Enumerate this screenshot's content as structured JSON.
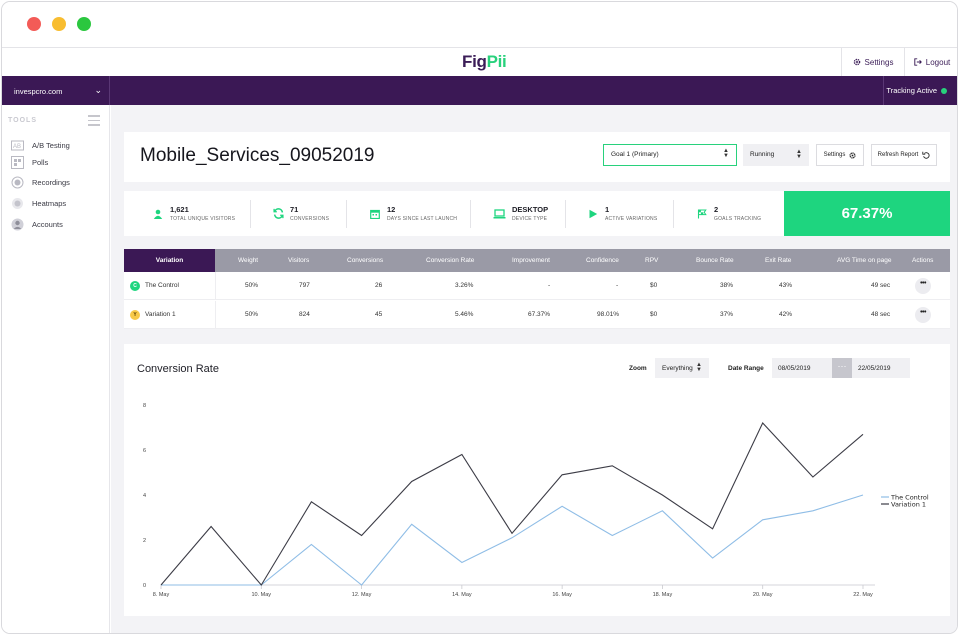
{
  "app": {
    "logo_a": "Fig",
    "logo_b": "Pii"
  },
  "topbar": {
    "settings_label": "Settings",
    "logout_label": "Logout"
  },
  "purplebar": {
    "site": "invespcro.com",
    "tracking_label": "Tracking Active"
  },
  "sidebar": {
    "section_label": "TOOLS",
    "items": [
      {
        "label": "A/B Testing",
        "icon": "ab-testing-icon"
      },
      {
        "label": "Polls",
        "icon": "polls-icon"
      },
      {
        "label": "Recordings",
        "icon": "recordings-icon"
      },
      {
        "label": "Heatmaps",
        "icon": "heatmaps-icon"
      },
      {
        "label": "Accounts",
        "icon": "accounts-icon"
      }
    ]
  },
  "header": {
    "title": "Mobile_Services_09052019",
    "goal_value": "Goal 1 (Primary)",
    "status_value": "Running",
    "settings_label": "Settings",
    "refresh_label": "Refresh Report"
  },
  "stats": [
    {
      "value": "1,621",
      "label": "TOTAL UNIQUE VISITORS",
      "icon": "user-icon"
    },
    {
      "value": "71",
      "label": "CONVERSIONS",
      "icon": "refresh-icon"
    },
    {
      "value": "12",
      "label": "DAYS SINCE LAST LAUNCH",
      "icon": "calendar-icon"
    },
    {
      "value": "DESKTOP",
      "label": "DEVICE TYPE",
      "icon": "laptop-icon"
    },
    {
      "value": "1",
      "label": "ACTIVE VARIATIONS",
      "icon": "play-icon"
    },
    {
      "value": "2",
      "label": "GOALS TRACKING",
      "icon": "flag-icon"
    }
  ],
  "conversion_rate": "67.37%",
  "table": {
    "headers": [
      "Variation",
      "Weight",
      "Visitors",
      "Conversions",
      "Conversion Rate",
      "Improvement",
      "Confidence",
      "RPV",
      "Bounce Rate",
      "Exit Rate",
      "AVG Time on page",
      "Actions"
    ],
    "rows": [
      {
        "badge": "C",
        "name": "The Control",
        "weight": "50%",
        "visitors": "797",
        "conversions": "26",
        "rate": "3.26%",
        "improvement": "-",
        "confidence": "-",
        "rpv": "$0",
        "bounce": "38%",
        "exit": "43%",
        "avg_time": "49 sec",
        "actions": "•••"
      },
      {
        "badge": "Y",
        "name": "Variation 1",
        "weight": "50%",
        "visitors": "824",
        "conversions": "45",
        "rate": "5.46%",
        "improvement": "67.37%",
        "confidence": "98.01%",
        "rpv": "$0",
        "bounce": "37%",
        "exit": "42%",
        "avg_time": "48 sec",
        "actions": "•••"
      }
    ]
  },
  "chart_panel": {
    "title": "Conversion Rate",
    "zoom_label": "Zoom",
    "zoom_value": "Everything",
    "date_range_label": "Date Range",
    "date_from": "08/05/2019",
    "date_sep": "···",
    "date_to": "22/05/2019"
  },
  "chart_data": {
    "type": "line",
    "x": [
      8,
      9,
      10,
      11,
      12,
      13,
      14,
      15,
      16,
      17,
      18,
      19,
      20,
      21,
      22
    ],
    "x_tick_values": [
      8,
      10,
      12,
      14,
      16,
      18,
      20,
      22
    ],
    "x_tick_labels": [
      "8. May",
      "10. May",
      "12. May",
      "14. May",
      "16. May",
      "18. May",
      "20. May",
      "22. May"
    ],
    "ylim": [
      0,
      8
    ],
    "y_ticks": [
      0,
      2,
      4,
      6,
      8
    ],
    "grid": false,
    "legend_position": "right",
    "series": [
      {
        "name": "The Control",
        "color": "#8fbde6",
        "values": [
          0,
          0,
          0,
          1.8,
          0,
          2.7,
          1.0,
          2.1,
          3.5,
          2.2,
          3.3,
          1.2,
          2.9,
          3.3,
          4.0
        ]
      },
      {
        "name": "Variation 1",
        "color": "#3c3c46",
        "values": [
          0,
          2.6,
          0,
          3.7,
          2.2,
          4.6,
          5.8,
          2.3,
          4.9,
          5.3,
          4.0,
          2.5,
          7.2,
          4.8,
          6.7
        ]
      }
    ]
  }
}
